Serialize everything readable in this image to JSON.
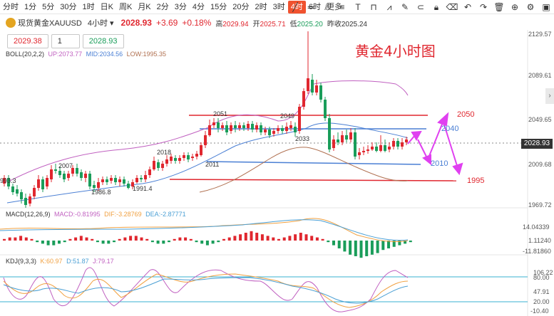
{
  "toolbar": {
    "timeframes": [
      "分时",
      "1分",
      "5分",
      "30分",
      "1时",
      "日K",
      "周K",
      "月K",
      "2分",
      "3分",
      "4分",
      "15分",
      "20分",
      "2时",
      "3时",
      "4时",
      "6时",
      "更多"
    ],
    "active": "4时"
  },
  "info": {
    "symbol": "现货黄金XAUUSD",
    "period": "4小时",
    "price": "2028.93",
    "change": "+3.69",
    "pct": "+0.18%",
    "high_label": "高",
    "high": "2029.94",
    "open_label": "开",
    "open": "2025.71",
    "low_label": "低",
    "low": "2025.20",
    "prev_label": "昨收",
    "prev": "2025.24"
  },
  "trade": {
    "sell": "2029.38",
    "qty": "1",
    "buy": "2028.93"
  },
  "annotation_title": "黄金4小时图",
  "boll": {
    "label": "BOLL(20,2,2)",
    "up": "UP:2073.77",
    "mid": "MID:2034.56",
    "low": "LOW:1995.35"
  },
  "macd": {
    "label": "MACD(12,26,9)",
    "macd": "MACD:-0.81995",
    "dif": "DIF:-3.28769",
    "dea": "DEA:-2.87771"
  },
  "kdj": {
    "label": "KDJ(9,3,3)",
    "k": "K:60.97",
    "d": "D:51.87",
    "j": "J:79.17"
  },
  "price_axis": [
    "2129.57",
    "2089.61",
    "2049.65",
    "2009.68",
    "1969.72"
  ],
  "macd_axis": [
    "14.04339",
    "1.11240",
    "-11.81860"
  ],
  "kdj_axis": [
    "106.22",
    "80.00",
    "47.91",
    "20.00",
    "-10.40"
  ],
  "current_price_tag": "2028.93",
  "level_labels": [
    "2050",
    "2040",
    "2010",
    "1995"
  ],
  "chart_labels": [
    "2051",
    "2049",
    "2033",
    "2018",
    "2011",
    "2007",
    "1986.8",
    "1991.4",
    "993.3"
  ],
  "colors": {
    "up": "#e0272f",
    "down": "#1a9d5a",
    "accent": "#f0522f",
    "boll_up": "#c060c0",
    "boll_mid": "#4a7fd4",
    "boll_low": "#b07050",
    "projection": "#e040f0"
  }
}
